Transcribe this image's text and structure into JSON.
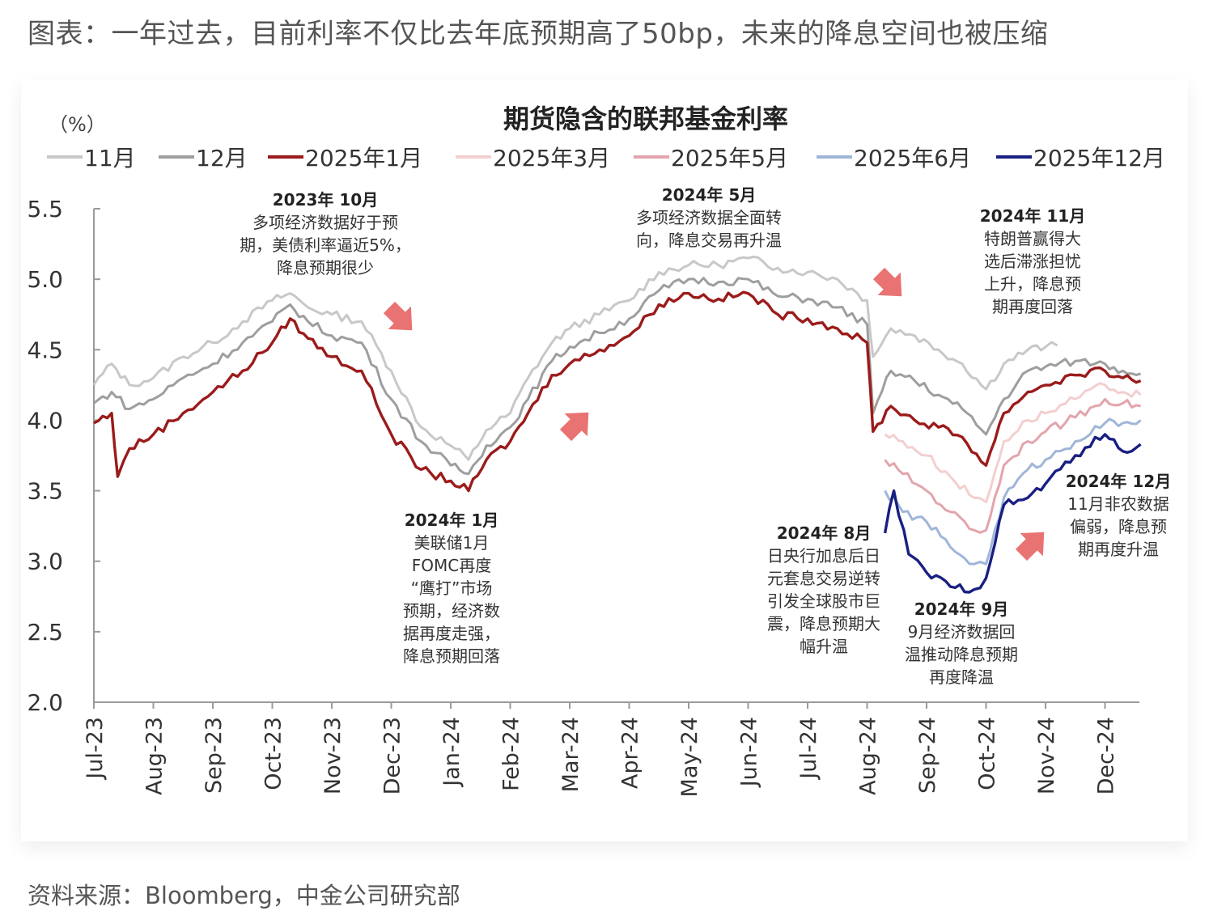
{
  "page": {
    "title": "图表：一年过去，目前利率不仅比去年底预期高了50bp，未来的降息空间也被压缩",
    "source": "资料来源：Bloomberg，中金公司研究部"
  },
  "chart_data": {
    "type": "line",
    "title": "期货隐含的联邦基金利率",
    "yunit": "（%）",
    "ylim": [
      2.0,
      5.5
    ],
    "yticks": [
      "5.5",
      "5.0",
      "4.5",
      "4.0",
      "3.5",
      "3.0",
      "2.5",
      "2.0"
    ],
    "x_categories": [
      "Jul-23",
      "Aug-23",
      "Sep-23",
      "Oct-23",
      "Nov-23",
      "Dec-23",
      "Jan-24",
      "Feb-24",
      "Mar-24",
      "Apr-24",
      "May-24",
      "Jun-24",
      "Jul-24",
      "Aug-24",
      "Sep-24",
      "Oct-24",
      "Nov-24",
      "Dec-24"
    ],
    "legend_position": "top",
    "grid": false,
    "series": [
      {
        "name": "11月",
        "color": "#c8c8c8",
        "points": [
          [
            0,
            4.25
          ],
          [
            0.3,
            4.4
          ],
          [
            0.6,
            4.25
          ],
          [
            1.0,
            4.3
          ],
          [
            1.5,
            4.45
          ],
          [
            2.0,
            4.55
          ],
          [
            2.5,
            4.7
          ],
          [
            3.0,
            4.85
          ],
          [
            3.3,
            4.9
          ],
          [
            3.6,
            4.8
          ],
          [
            4.0,
            4.75
          ],
          [
            4.5,
            4.7
          ],
          [
            5.0,
            4.35
          ],
          [
            5.5,
            3.95
          ],
          [
            6.0,
            3.82
          ],
          [
            6.3,
            3.72
          ],
          [
            6.6,
            3.93
          ],
          [
            7.0,
            4.05
          ],
          [
            7.3,
            4.3
          ],
          [
            7.7,
            4.55
          ],
          [
            8.0,
            4.65
          ],
          [
            8.5,
            4.75
          ],
          [
            9.0,
            4.85
          ],
          [
            9.5,
            5.05
          ],
          [
            10.0,
            5.1
          ],
          [
            10.5,
            5.1
          ],
          [
            11.0,
            5.15
          ],
          [
            11.5,
            5.08
          ],
          [
            12.0,
            5.05
          ],
          [
            12.5,
            5.0
          ],
          [
            13.0,
            4.85
          ],
          [
            13.1,
            4.45
          ],
          [
            13.4,
            4.65
          ],
          [
            13.8,
            4.6
          ],
          [
            14.2,
            4.5
          ],
          [
            14.6,
            4.4
          ],
          [
            15.0,
            4.22
          ],
          [
            15.3,
            4.4
          ],
          [
            15.7,
            4.5
          ],
          [
            16.0,
            4.52
          ],
          [
            16.2,
            4.53
          ]
        ]
      },
      {
        "name": "12月",
        "color": "#9e9e9e",
        "points": [
          [
            0,
            4.12
          ],
          [
            0.3,
            4.2
          ],
          [
            0.6,
            4.08
          ],
          [
            1.0,
            4.15
          ],
          [
            1.5,
            4.3
          ],
          [
            2.0,
            4.4
          ],
          [
            2.5,
            4.55
          ],
          [
            3.0,
            4.7
          ],
          [
            3.3,
            4.82
          ],
          [
            3.6,
            4.7
          ],
          [
            4.0,
            4.6
          ],
          [
            4.5,
            4.55
          ],
          [
            5.0,
            4.15
          ],
          [
            5.5,
            3.85
          ],
          [
            6.0,
            3.68
          ],
          [
            6.3,
            3.62
          ],
          [
            6.6,
            3.82
          ],
          [
            7.0,
            3.95
          ],
          [
            7.3,
            4.15
          ],
          [
            7.7,
            4.42
          ],
          [
            8.0,
            4.52
          ],
          [
            8.5,
            4.62
          ],
          [
            9.0,
            4.72
          ],
          [
            9.5,
            4.92
          ],
          [
            10.0,
            5.0
          ],
          [
            10.5,
            4.98
          ],
          [
            11.0,
            5.0
          ],
          [
            11.5,
            4.88
          ],
          [
            12.0,
            4.86
          ],
          [
            12.5,
            4.8
          ],
          [
            13.0,
            4.68
          ],
          [
            13.1,
            4.05
          ],
          [
            13.4,
            4.35
          ],
          [
            13.8,
            4.28
          ],
          [
            14.2,
            4.18
          ],
          [
            14.6,
            4.08
          ],
          [
            15.0,
            3.9
          ],
          [
            15.3,
            4.15
          ],
          [
            15.7,
            4.35
          ],
          [
            16.0,
            4.38
          ],
          [
            16.5,
            4.42
          ],
          [
            17.0,
            4.4
          ],
          [
            17.3,
            4.35
          ],
          [
            17.6,
            4.33
          ]
        ]
      },
      {
        "name": "2025年1月",
        "color": "#9b1b1b",
        "points": [
          [
            0,
            3.98
          ],
          [
            0.3,
            4.05
          ],
          [
            0.4,
            3.6
          ],
          [
            0.6,
            3.8
          ],
          [
            1.0,
            3.9
          ],
          [
            1.5,
            4.05
          ],
          [
            2.0,
            4.2
          ],
          [
            2.5,
            4.35
          ],
          [
            3.0,
            4.55
          ],
          [
            3.3,
            4.72
          ],
          [
            3.6,
            4.58
          ],
          [
            4.0,
            4.45
          ],
          [
            4.5,
            4.35
          ],
          [
            5.0,
            3.9
          ],
          [
            5.5,
            3.65
          ],
          [
            6.0,
            3.57
          ],
          [
            6.3,
            3.5
          ],
          [
            6.6,
            3.72
          ],
          [
            7.0,
            3.85
          ],
          [
            7.3,
            4.05
          ],
          [
            7.7,
            4.32
          ],
          [
            8.0,
            4.4
          ],
          [
            8.5,
            4.5
          ],
          [
            9.0,
            4.6
          ],
          [
            9.5,
            4.82
          ],
          [
            10.0,
            4.9
          ],
          [
            10.5,
            4.86
          ],
          [
            11.0,
            4.9
          ],
          [
            11.5,
            4.75
          ],
          [
            12.0,
            4.72
          ],
          [
            12.5,
            4.65
          ],
          [
            13.0,
            4.55
          ],
          [
            13.1,
            3.92
          ],
          [
            13.4,
            4.1
          ],
          [
            13.8,
            4.0
          ],
          [
            14.2,
            3.95
          ],
          [
            14.6,
            3.88
          ],
          [
            15.0,
            3.68
          ],
          [
            15.3,
            4.05
          ],
          [
            15.7,
            4.2
          ],
          [
            16.0,
            4.25
          ],
          [
            16.5,
            4.32
          ],
          [
            17.0,
            4.35
          ],
          [
            17.3,
            4.3
          ],
          [
            17.6,
            4.28
          ]
        ]
      },
      {
        "name": "2025年3月",
        "color": "#f3cfcf",
        "points": [
          [
            13.3,
            3.9
          ],
          [
            13.6,
            3.85
          ],
          [
            14.0,
            3.75
          ],
          [
            14.4,
            3.6
          ],
          [
            14.8,
            3.45
          ],
          [
            15.0,
            3.42
          ],
          [
            15.3,
            3.85
          ],
          [
            15.7,
            4.0
          ],
          [
            16.0,
            4.05
          ],
          [
            16.5,
            4.15
          ],
          [
            17.0,
            4.25
          ],
          [
            17.3,
            4.2
          ],
          [
            17.6,
            4.18
          ]
        ]
      },
      {
        "name": "2025年5月",
        "color": "#e3a4ad",
        "points": [
          [
            13.3,
            3.72
          ],
          [
            13.6,
            3.62
          ],
          [
            14.0,
            3.5
          ],
          [
            14.4,
            3.35
          ],
          [
            14.8,
            3.22
          ],
          [
            15.0,
            3.22
          ],
          [
            15.3,
            3.68
          ],
          [
            15.7,
            3.85
          ],
          [
            16.0,
            3.92
          ],
          [
            16.5,
            4.02
          ],
          [
            17.0,
            4.15
          ],
          [
            17.3,
            4.12
          ],
          [
            17.6,
            4.1
          ]
        ]
      },
      {
        "name": "2025年6月",
        "color": "#9fb6d8",
        "points": [
          [
            13.3,
            3.5
          ],
          [
            13.6,
            3.35
          ],
          [
            14.0,
            3.28
          ],
          [
            14.4,
            3.1
          ],
          [
            14.8,
            2.98
          ],
          [
            15.0,
            2.98
          ],
          [
            15.3,
            3.45
          ],
          [
            15.7,
            3.65
          ],
          [
            16.0,
            3.72
          ],
          [
            16.5,
            3.85
          ],
          [
            17.0,
            3.98
          ],
          [
            17.3,
            3.98
          ],
          [
            17.6,
            4.0
          ]
        ]
      },
      {
        "name": "2025年12月",
        "color": "#1a1f82",
        "points": [
          [
            13.3,
            3.2
          ],
          [
            13.45,
            3.5
          ],
          [
            13.7,
            3.05
          ],
          [
            14.0,
            2.92
          ],
          [
            14.4,
            2.82
          ],
          [
            14.8,
            2.8
          ],
          [
            15.0,
            2.88
          ],
          [
            15.3,
            3.4
          ],
          [
            15.7,
            3.45
          ],
          [
            16.0,
            3.55
          ],
          [
            16.5,
            3.75
          ],
          [
            17.0,
            3.9
          ],
          [
            17.3,
            3.78
          ],
          [
            17.6,
            3.83
          ]
        ]
      }
    ],
    "annotations": [
      {
        "title": "2023年 10月",
        "lines": [
          "多项经济数据好于预",
          "期，美债利率逼近5%，",
          "降息预期很少"
        ],
        "arrow": "down"
      },
      {
        "title": "2024年 5月",
        "lines": [
          "多项经济数据全面转",
          "向，降息交易再升温"
        ],
        "arrow": "down"
      },
      {
        "title": "2024年 11月",
        "lines": [
          "特朗普赢得大",
          "选后滞涨担忧",
          "上升，降息预",
          "期再度回落"
        ],
        "arrow": "none"
      },
      {
        "title": "2024年 1月",
        "lines": [
          "美联储1月",
          "FOMC再度",
          "“鹰打”市场",
          "预期，经济数",
          "据再度走强，",
          "降息预期回落"
        ],
        "arrow": "up"
      },
      {
        "title": "2024年 8月",
        "lines": [
          "日央行加息后日",
          "元套息交易逆转",
          "引发全球股市巨",
          "震，降息预期大",
          "幅升温"
        ],
        "arrow": "none"
      },
      {
        "title": "2024年 9月",
        "lines": [
          "9月经济数据回",
          "温推动降息预期",
          "再度降温"
        ],
        "arrow": "none"
      },
      {
        "title": "2024年 12月",
        "lines": [
          "11月非农数据",
          "偏弱，降息预",
          "期再度升温"
        ],
        "arrow": "up"
      }
    ]
  }
}
